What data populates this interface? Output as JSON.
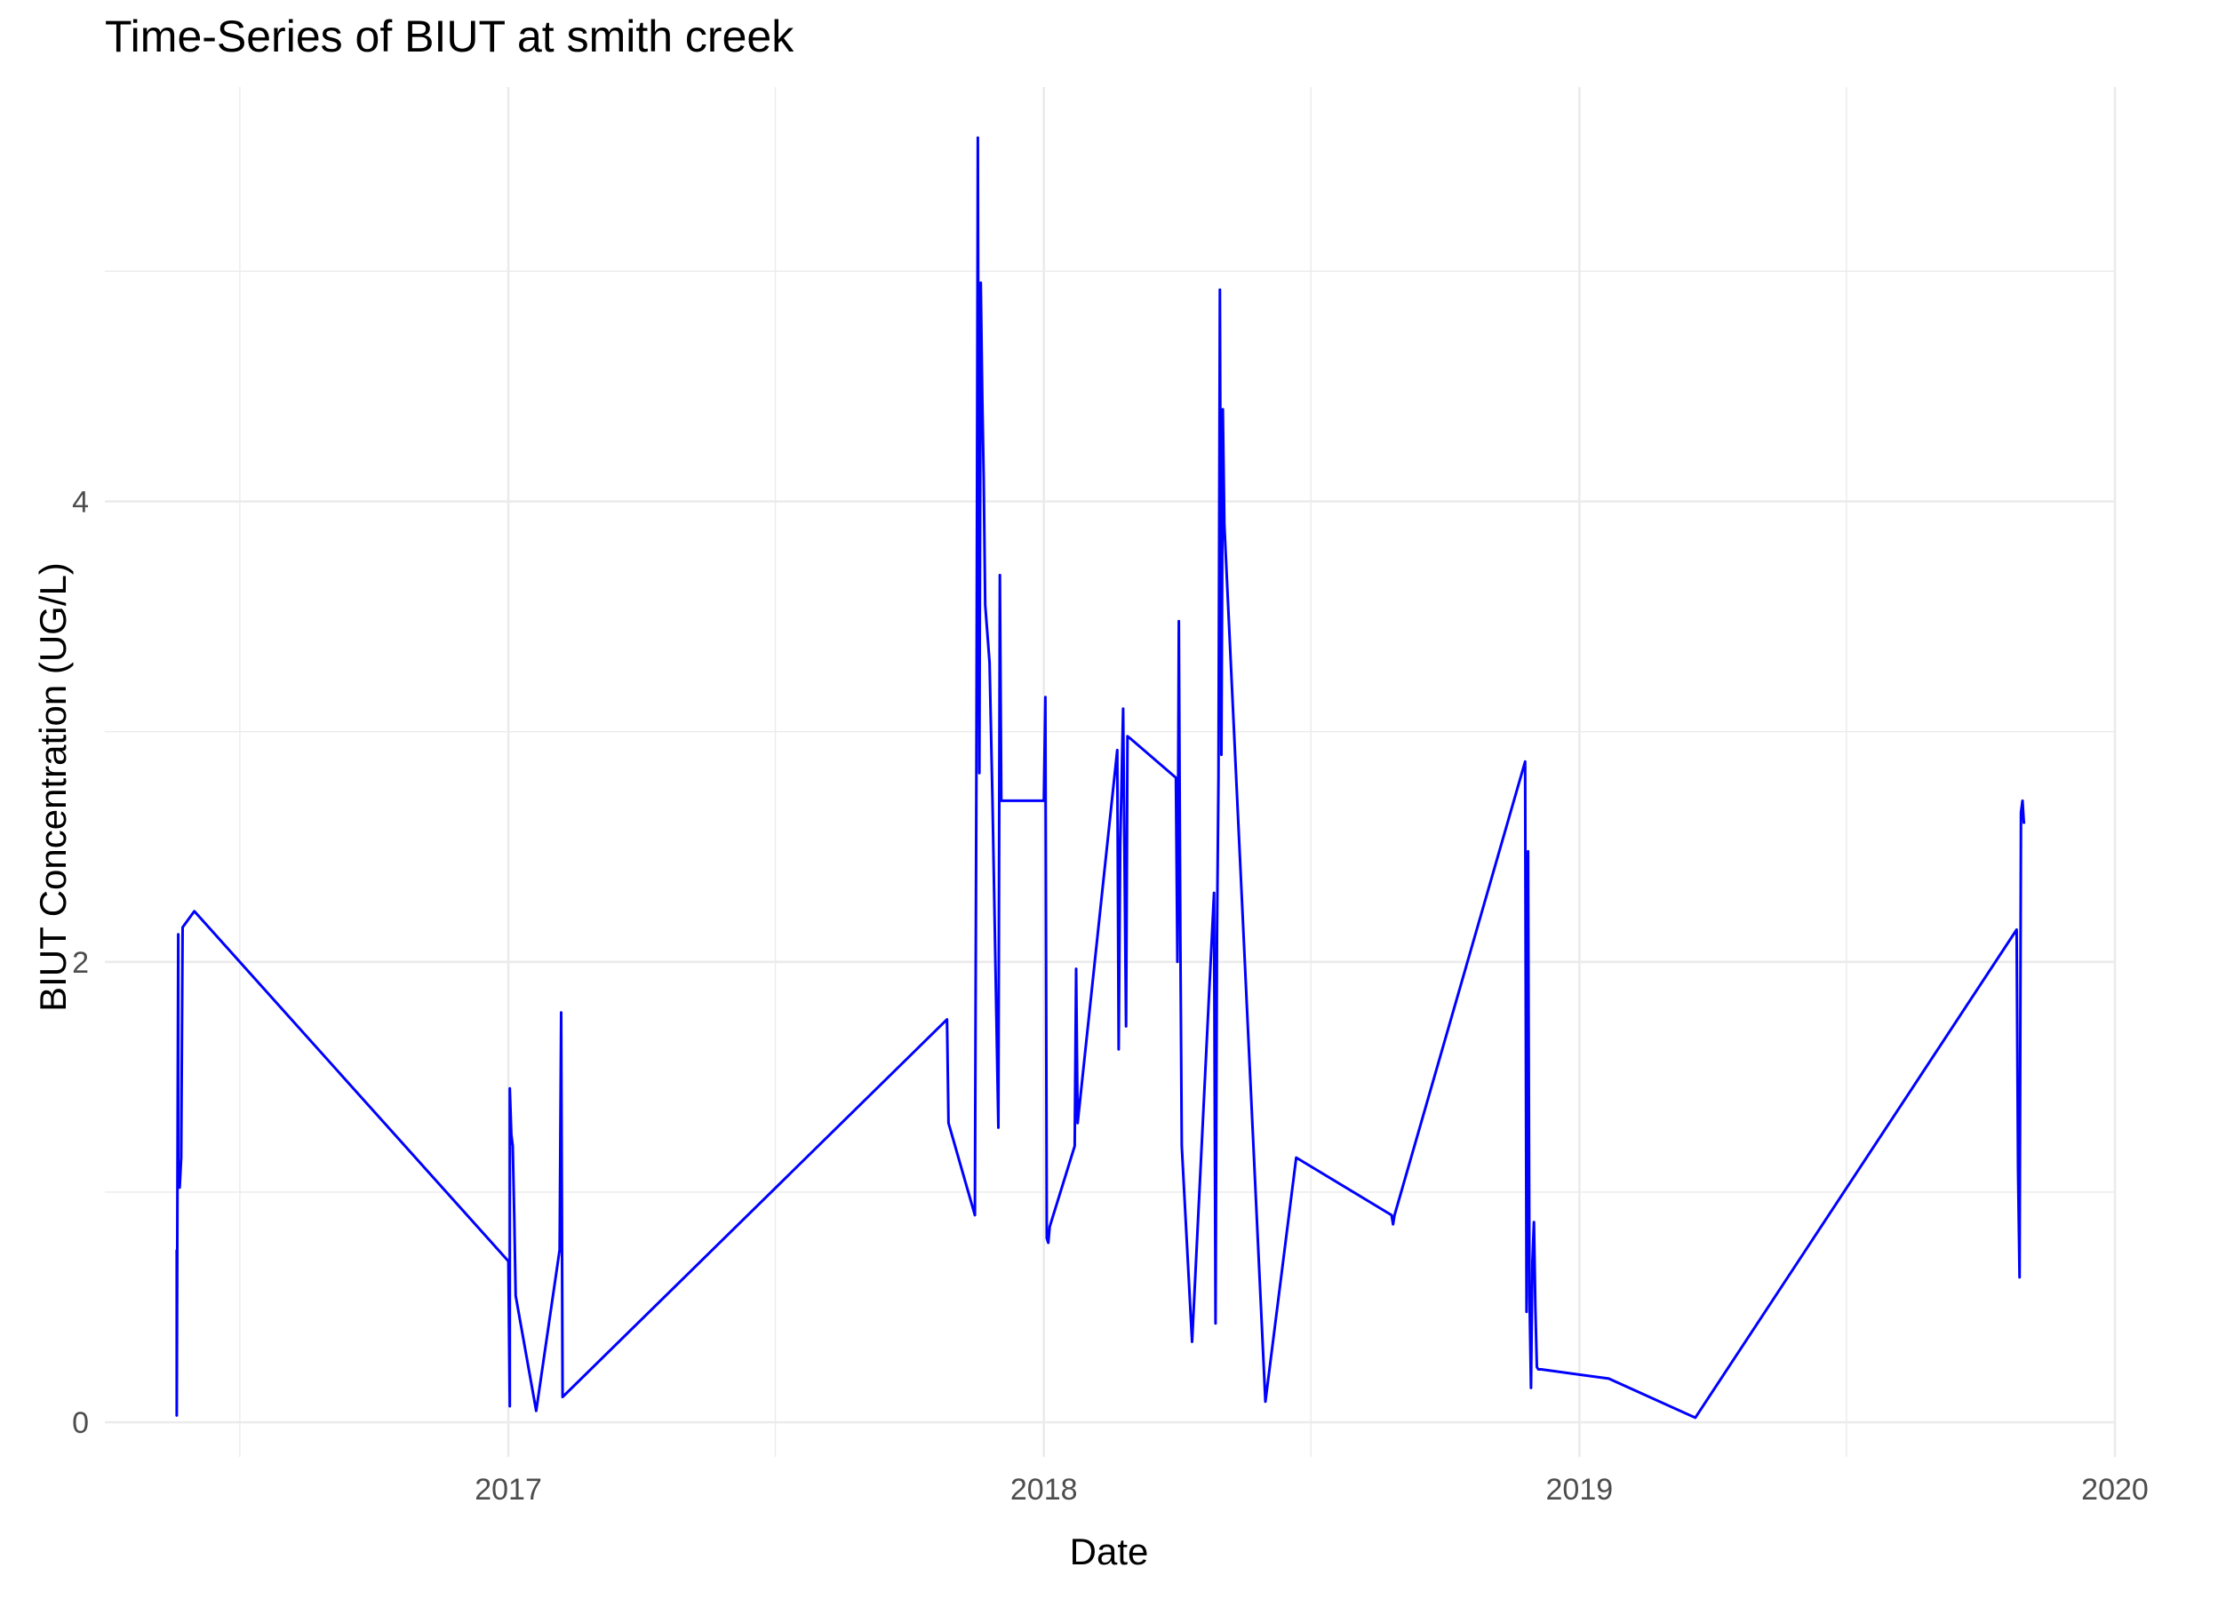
{
  "chart_data": {
    "type": "line",
    "title": "Time-Series of BIUT at smith creek",
    "xlabel": "Date",
    "ylabel": "BIUT Concentration (UG/L)",
    "x_ticks": [
      "2017",
      "2018",
      "2019",
      "2020"
    ],
    "y_ticks": [
      "0",
      "2",
      "4"
    ],
    "xlim": [
      "2016-04-01",
      "2020-01-01"
    ],
    "ylim": [
      -0.15,
      5.8
    ],
    "grid": true,
    "legend": "none",
    "line_color": "#0000ff",
    "series": [
      {
        "x": [
          "2016-05-20",
          "2016-05-20",
          "2016-05-21",
          "2016-05-21",
          "2016-05-21",
          "2016-05-22",
          "2016-05-23",
          "2016-05-24",
          "2016-06-01",
          "2017-01-01",
          "2017-01-02",
          "2017-01-02",
          "2017-01-03",
          "2017-01-04",
          "2017-01-05",
          "2017-01-06",
          "2017-01-20",
          "2017-02-05",
          "2017-02-06",
          "2017-02-07",
          "2017-10-27",
          "2017-10-28",
          "2017-11-15",
          "2017-11-16",
          "2017-11-17",
          "2017-11-18",
          "2017-11-19",
          "2017-11-20",
          "2017-11-21",
          "2017-11-22",
          "2017-11-25",
          "2017-11-27",
          "2017-12-01",
          "2017-12-02",
          "2017-12-03",
          "2017-12-04",
          "2017-12-05",
          "2017-12-06",
          "2017-12-07",
          "2018-01-01",
          "2018-01-02",
          "2018-01-03",
          "2018-01-04",
          "2018-01-05",
          "2018-01-22",
          "2018-01-23",
          "2018-01-24",
          "2018-02-20",
          "2018-02-21",
          "2018-02-22",
          "2018-02-24",
          "2018-02-26",
          "2018-02-27",
          "2018-03-01",
          "2018-04-01",
          "2018-04-02",
          "2018-04-03",
          "2018-04-04",
          "2018-04-05",
          "2018-04-12",
          "2018-04-27",
          "2018-04-28",
          "2018-04-29",
          "2018-04-30",
          "2018-05-01",
          "2018-05-02",
          "2018-05-03",
          "2018-05-04",
          "2018-06-01",
          "2018-06-22",
          "2018-08-26",
          "2018-08-27",
          "2018-08-28",
          "2018-11-25",
          "2018-11-26",
          "2018-11-27",
          "2018-11-28",
          "2018-11-29",
          "2018-11-30",
          "2018-12-01",
          "2018-12-02",
          "2018-12-03",
          "2018-12-04",
          "2018-12-05",
          "2018-12-06",
          "2019-01-21",
          "2019-03-21",
          "2019-10-26",
          "2019-10-27",
          "2019-10-28",
          "2019-10-29",
          "2019-10-30",
          "2019-10-31"
        ],
        "y": [
          0.75,
          0.03,
          2.12,
          1.75,
          1.04,
          1.02,
          1.15,
          2.15,
          2.22,
          0.7,
          0.07,
          1.45,
          1.25,
          1.2,
          0.9,
          0.55,
          0.05,
          0.75,
          1.78,
          0.11,
          1.75,
          1.3,
          0.9,
          2.85,
          5.58,
          2.82,
          4.95,
          4.45,
          4.1,
          3.55,
          3.3,
          2.7,
          1.28,
          3.68,
          2.7,
          2.7,
          2.7,
          2.7,
          2.7,
          2.7,
          3.15,
          0.8,
          0.78,
          0.85,
          1.2,
          1.97,
          1.3,
          2.92,
          1.62,
          2.5,
          3.1,
          1.72,
          2.98,
          2.97,
          2.8,
          2.0,
          3.48,
          2.1,
          1.2,
          0.35,
          2.3,
          0.43,
          2.1,
          2.8,
          4.92,
          2.9,
          4.4,
          3.9,
          0.09,
          1.15,
          0.9,
          0.86,
          0.9,
          2.87,
          0.48,
          2.48,
          0.55,
          0.15,
          0.7,
          0.87,
          0.5,
          0.24,
          0.23,
          0.23,
          0.23,
          0.19,
          0.02,
          2.14,
          1.1,
          0.63,
          2.65,
          2.7,
          2.6
        ]
      }
    ]
  }
}
